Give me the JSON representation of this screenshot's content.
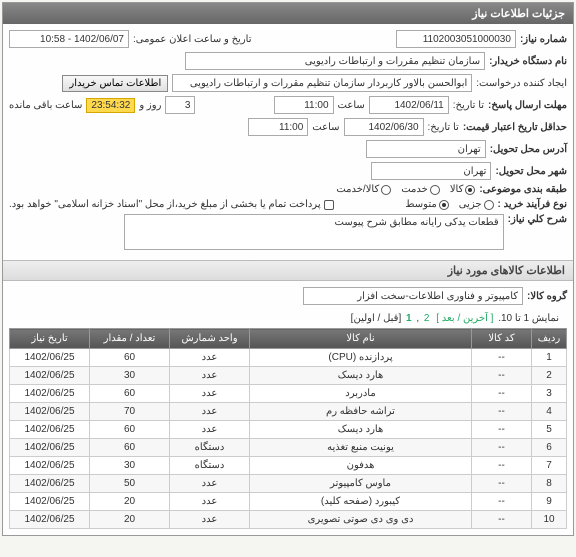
{
  "header": {
    "title": "جزئیات اطلاعات نیاز"
  },
  "form": {
    "need_no_label": "شماره نیاز:",
    "need_no": "1102003051000030",
    "announce_label": "تاریخ و ساعت اعلان عمومی:",
    "announce_value": "1402/06/07 - 10:58",
    "buyer_device_label": "نام دستگاه خریدار:",
    "buyer_device": "سازمان تنظیم مقررات و ارتباطات رادیویی",
    "requester_label": "ایجاد کننده درخواست:",
    "requester": "ابوالحسن  بالاور کاربردار سازمان تنظیم مقررات و ارتباطات رادیویی",
    "contact_btn": "اطلاعات تماس خریدار",
    "deadline_label": "مهلت ارسال پاسخ:",
    "until_label": "تا تاریخ:",
    "deadline_date": "1402/06/11",
    "time_label": "ساعت",
    "deadline_time": "11:00",
    "days_val": "3",
    "days_unit": "روز و",
    "timer": "23:54:32",
    "remain": "ساعت باقی مانده",
    "credit_start_label": "حداقل تاریخ اعتبار قیمت:",
    "credit_until_label": "تا تاریخ:",
    "credit_date": "1402/06/30",
    "credit_time": "11:00",
    "delivery_addr_label": "آدرس محل تحویل:",
    "delivery_addr": "تهران",
    "delivery_city_label": "شهر محل تحویل:",
    "delivery_city": "تهران",
    "subject_cat_label": "طبقه بندی موضوعی:",
    "type_label": "نوع فرآیند خرید :",
    "type_options": [
      "جزیی",
      "متوسط"
    ],
    "type_selected": "متوسط",
    "cat_options": [
      "کالا",
      "خدمت",
      "کالا/خدمت"
    ],
    "cat_selected": "کالا",
    "payment_note": "پرداخت تمام یا بخشی از مبلغ خرید،از محل \"اسناد خزانه اسلامی\" خواهد بود.",
    "desc_label": "شرح کلي نياز:",
    "desc_value": "قطعات یدکی رایانه مطابق شرح پیوست",
    "goods_section": "اطلاعات كالاهای مورد نياز",
    "goods_group_label": "گروه کالا:",
    "goods_group": "کامپیوتر و فناوری اطلاعات-سخت افزار"
  },
  "pager": {
    "prefix": "نمایش 1 تا 10.",
    "links_label": "[ آخرین / بعد ]",
    "pages": [
      "2",
      "1"
    ],
    "suffix": "[قبل / اولین]"
  },
  "table": {
    "columns": [
      "ردیف",
      "کد کالا",
      "نام کالا",
      "واحد شمارش",
      "تعداد / مقدار",
      "تاریخ نیاز"
    ],
    "rows": [
      [
        "1",
        "--",
        "پردازنده (CPU)",
        "عدد",
        "60",
        "1402/06/25"
      ],
      [
        "2",
        "--",
        "هارد دیسک",
        "عدد",
        "30",
        "1402/06/25"
      ],
      [
        "3",
        "--",
        "مادربرد",
        "عدد",
        "60",
        "1402/06/25"
      ],
      [
        "4",
        "--",
        "تراشه حافظه رم",
        "عدد",
        "70",
        "1402/06/25"
      ],
      [
        "5",
        "--",
        "هارد دیسک",
        "عدد",
        "60",
        "1402/06/25"
      ],
      [
        "6",
        "--",
        "یونیت منبع تغذیه",
        "دستگاه",
        "60",
        "1402/06/25"
      ],
      [
        "7",
        "--",
        "هدفون",
        "دستگاه",
        "30",
        "1402/06/25"
      ],
      [
        "8",
        "--",
        "ماوس کامپیوتر",
        "عدد",
        "50",
        "1402/06/25"
      ],
      [
        "9",
        "--",
        "کیبورد (صفحه کلید)",
        "عدد",
        "20",
        "1402/06/25"
      ],
      [
        "10",
        "--",
        "دی وی دی صوتی تصویری",
        "عدد",
        "20",
        "1402/06/25"
      ]
    ]
  }
}
